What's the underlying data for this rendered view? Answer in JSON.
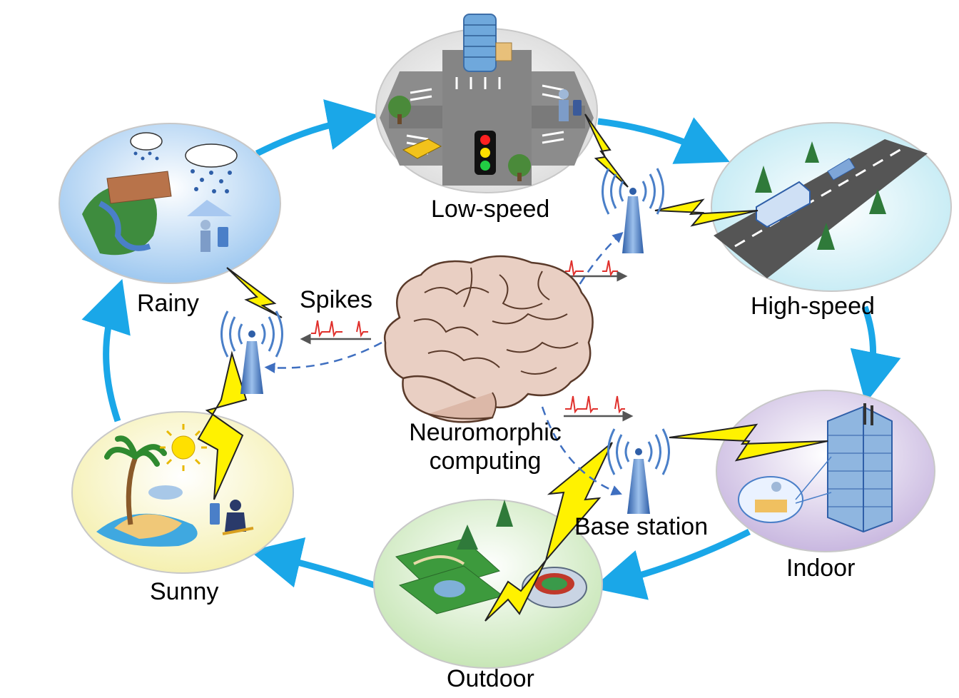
{
  "labels": {
    "low_speed": "Low-speed",
    "high_speed": "High-speed",
    "indoor": "Indoor",
    "outdoor": "Outdoor",
    "sunny": "Sunny",
    "rainy": "Rainy",
    "spikes": "Spikes",
    "neuromorphic_line1": "Neuromorphic",
    "neuromorphic_line2": "computing",
    "base_station": "Base station"
  },
  "colors": {
    "cycle_arrow": "#1aa7e8",
    "spike": "#e0302c",
    "lightning_fill": "#fff200",
    "tower": "#4a7fc8",
    "brain": "#e9cfc3"
  },
  "icons": {
    "scenes": [
      "city-intersection-icon",
      "highway-icon",
      "office-building-icon",
      "park-stadium-icon",
      "beach-icon",
      "rain-icon"
    ],
    "tower": "base-station-tower-icon",
    "brain": "brain-icon"
  }
}
